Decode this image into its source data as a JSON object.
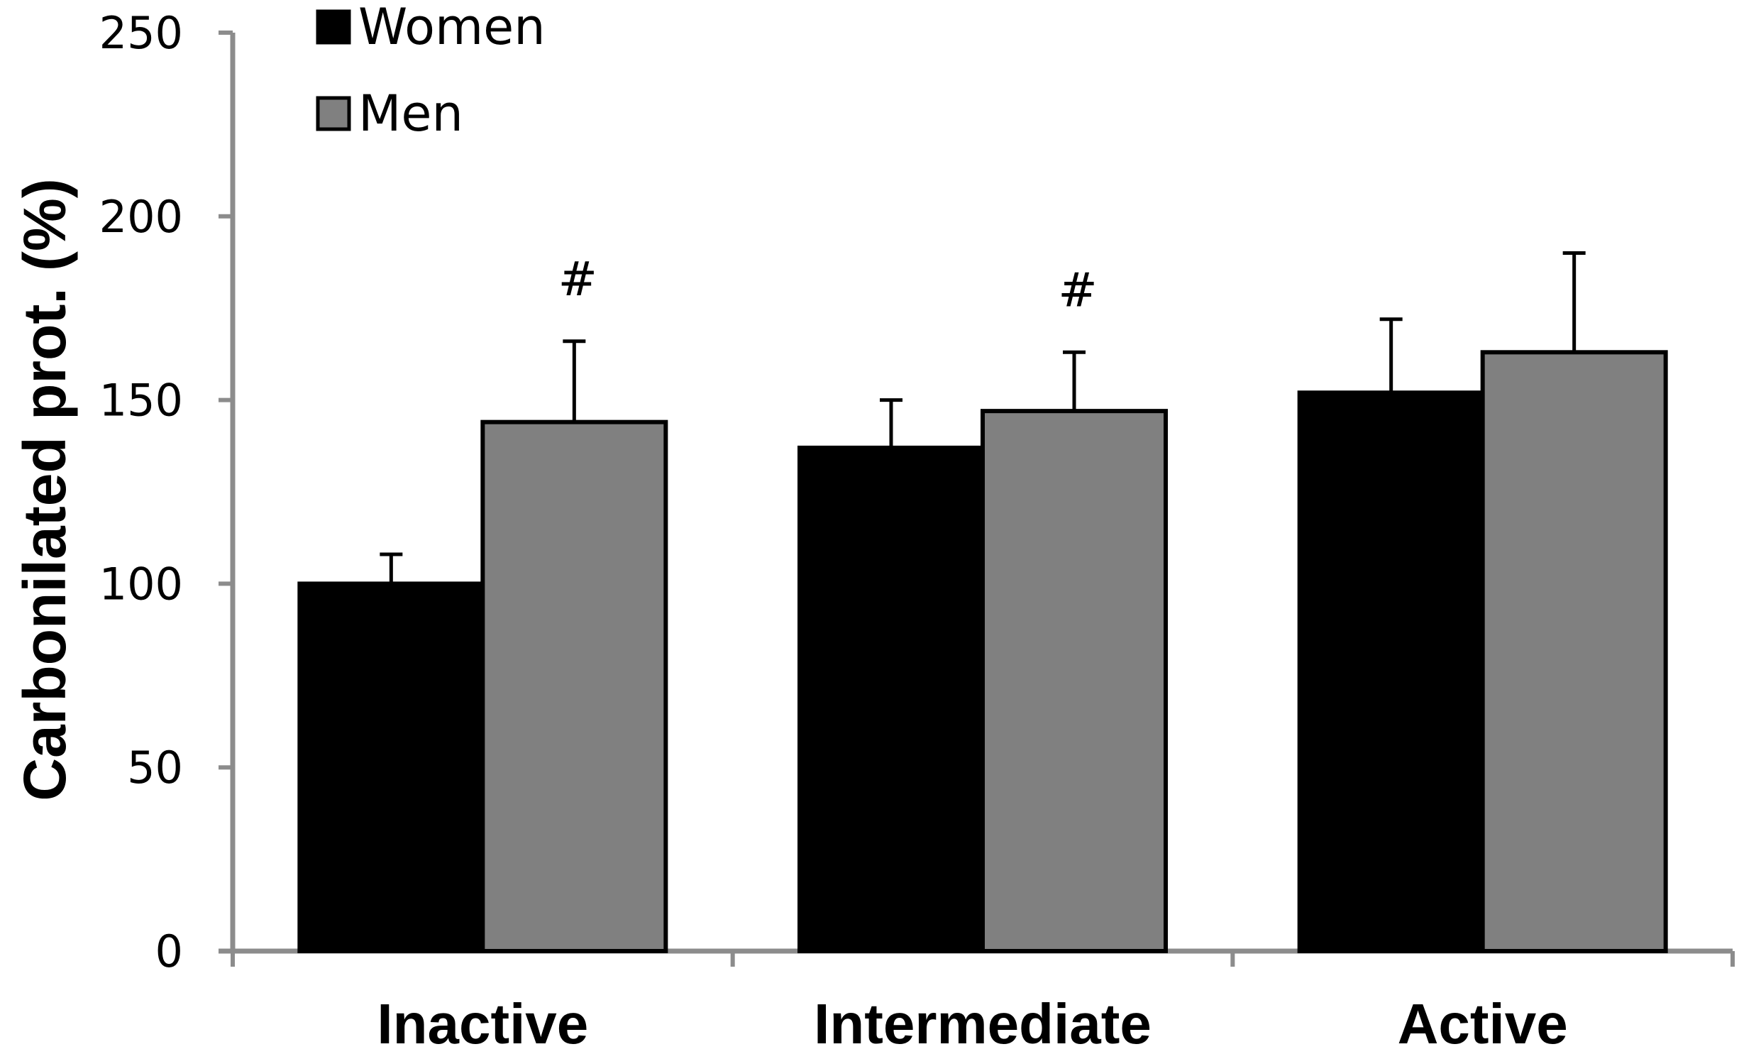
{
  "chart_data": {
    "type": "bar",
    "title": "",
    "xlabel": "",
    "ylabel": "Carbonilated prot. (%)",
    "ylim": [
      0,
      250
    ],
    "yticks": [
      0,
      50,
      100,
      150,
      200,
      250
    ],
    "categories": [
      "Inactive",
      "Intermediate",
      "Active"
    ],
    "series": [
      {
        "name": "Women",
        "color": "#000000",
        "values": [
          100,
          137,
          152
        ],
        "errors": [
          8,
          13,
          20
        ]
      },
      {
        "name": "Men",
        "color": "#808080",
        "values": [
          144,
          147,
          163
        ],
        "errors": [
          22,
          16,
          27
        ]
      }
    ],
    "annotations": [
      {
        "category": "Inactive",
        "series": "Men",
        "text": "#"
      },
      {
        "category": "Intermediate",
        "series": "Men",
        "text": "#"
      }
    ],
    "legend": {
      "position": "top-left"
    },
    "grid": false
  },
  "colors": {
    "axis": "#8c8c8c",
    "bar_outline": "#000000"
  }
}
